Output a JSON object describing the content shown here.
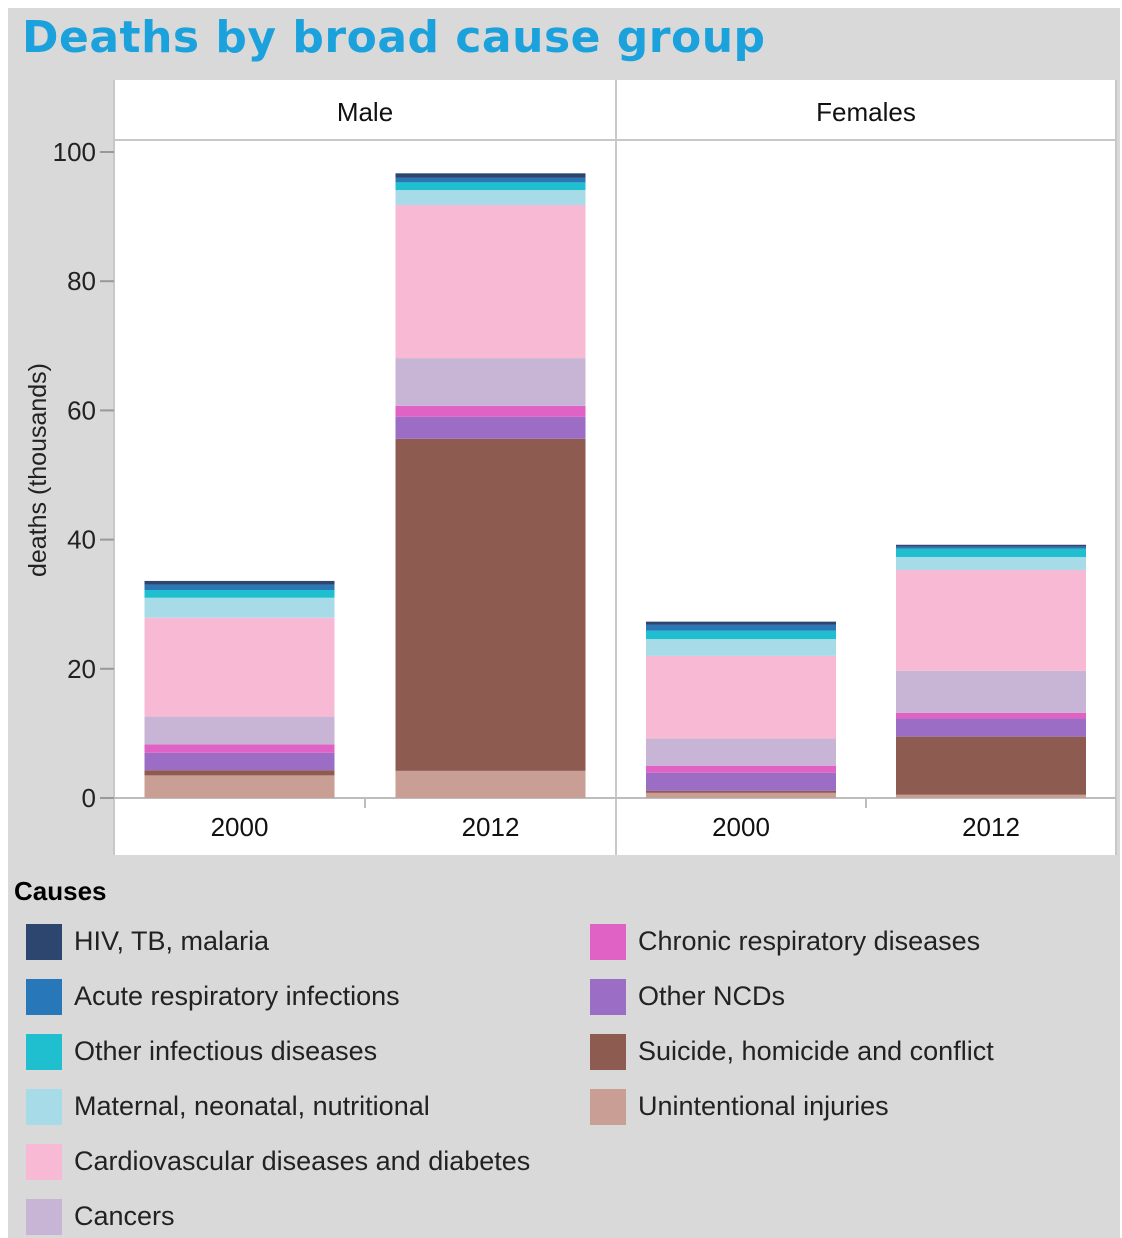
{
  "title": "Deaths by broad cause group",
  "legend_title": "Causes",
  "chart_data": {
    "type": "bar",
    "stacked": true,
    "ylabel": "deaths (thousands)",
    "ylim": [
      0,
      100
    ],
    "yticks": [
      0,
      20,
      40,
      60,
      80,
      100
    ],
    "panels": [
      {
        "name": "Male",
        "categories": [
          "2000",
          "2012"
        ],
        "series": [
          {
            "name": "Unintentional injuries",
            "values": [
              3.5,
              4.2
            ]
          },
          {
            "name": "Suicide, homicide and conflict",
            "values": [
              0.8,
              51.4
            ]
          },
          {
            "name": "Other NCDs",
            "values": [
              2.7,
              3.4
            ]
          },
          {
            "name": "Chronic respiratory diseases",
            "values": [
              1.3,
              1.7
            ]
          },
          {
            "name": "Cancers",
            "values": [
              4.3,
              7.4
            ]
          },
          {
            "name": "Cardiovascular diseases and diabetes",
            "values": [
              15.3,
              23.7
            ]
          },
          {
            "name": "Maternal, neonatal, nutritional",
            "values": [
              3.1,
              2.3
            ]
          },
          {
            "name": "Other infectious diseases",
            "values": [
              1.2,
              1.2
            ]
          },
          {
            "name": "Acute respiratory infections",
            "values": [
              0.8,
              0.7
            ]
          },
          {
            "name": "HIV, TB, malaria",
            "values": [
              0.6,
              0.7
            ]
          }
        ]
      },
      {
        "name": "Females",
        "categories": [
          "2000",
          "2012"
        ],
        "series": [
          {
            "name": "Unintentional injuries",
            "values": [
              0.8,
              0.5
            ]
          },
          {
            "name": "Suicide, homicide and conflict",
            "values": [
              0.3,
              9.0
            ]
          },
          {
            "name": "Other NCDs",
            "values": [
              2.8,
              2.8
            ]
          },
          {
            "name": "Chronic respiratory diseases",
            "values": [
              1.1,
              0.9
            ]
          },
          {
            "name": "Cancers",
            "values": [
              4.2,
              6.5
            ]
          },
          {
            "name": "Cardiovascular diseases and diabetes",
            "values": [
              12.8,
              15.6
            ]
          },
          {
            "name": "Maternal, neonatal, nutritional",
            "values": [
              2.6,
              2.0
            ]
          },
          {
            "name": "Other infectious diseases",
            "values": [
              1.3,
              1.3
            ]
          },
          {
            "name": "Acute respiratory infections",
            "values": [
              0.9,
              0.3
            ]
          },
          {
            "name": "HIV, TB, malaria",
            "values": [
              0.5,
              0.3
            ]
          }
        ]
      }
    ],
    "legend": [
      {
        "name": "HIV, TB, malaria",
        "color": "#2c4670"
      },
      {
        "name": "Acute respiratory infections",
        "color": "#2877b9"
      },
      {
        "name": "Other infectious diseases",
        "color": "#1fbfcf"
      },
      {
        "name": "Maternal, neonatal, nutritional",
        "color": "#a8dbe8"
      },
      {
        "name": "Cardiovascular diseases and diabetes",
        "color": "#f7b9d3"
      },
      {
        "name": "Cancers",
        "color": "#c8b5d6"
      },
      {
        "name": "Chronic respiratory diseases",
        "color": "#df62c4"
      },
      {
        "name": "Other NCDs",
        "color": "#9c6dc4"
      },
      {
        "name": "Suicide, homicide and conflict",
        "color": "#8e5b50"
      },
      {
        "name": "Unintentional injuries",
        "color": "#c99e95"
      }
    ]
  }
}
